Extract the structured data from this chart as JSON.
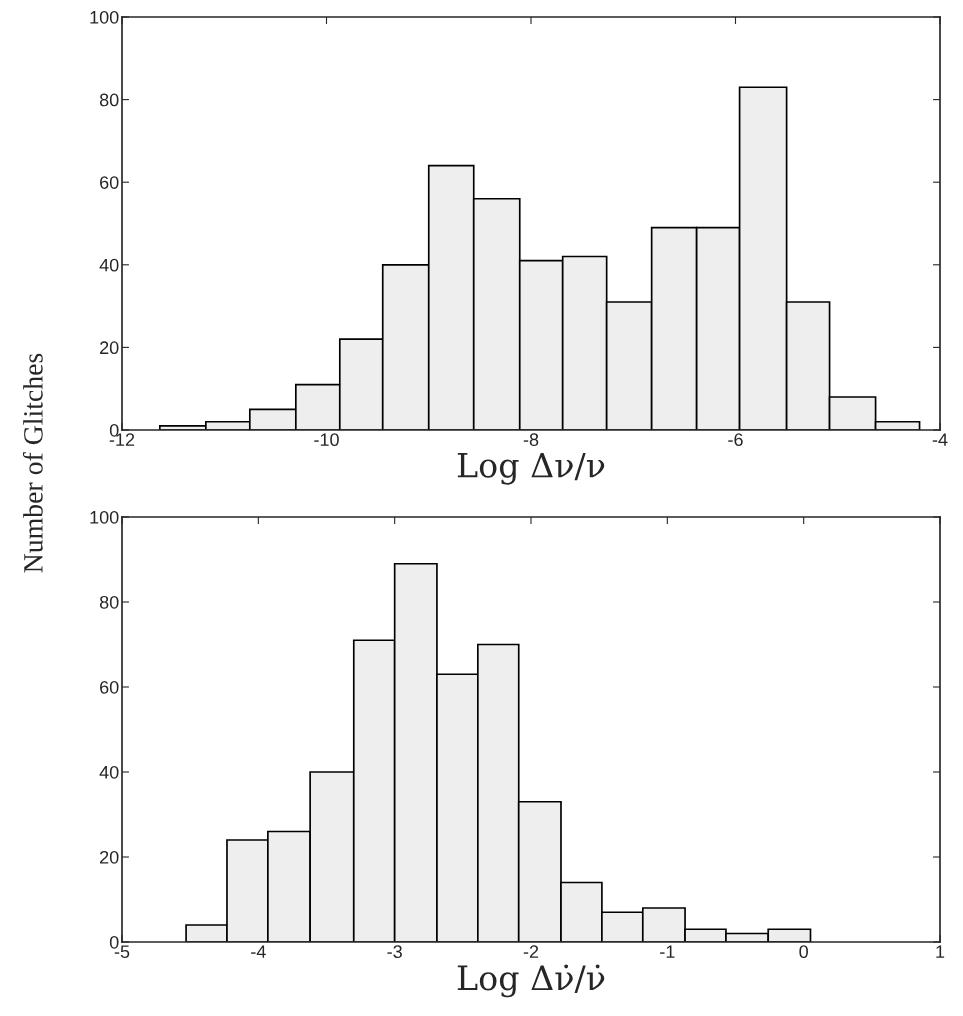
{
  "chart_data": [
    {
      "type": "histogram",
      "xlabel": "Log Δν/ν",
      "ylabel": "Number of Glitches",
      "color": "#eeeeee",
      "bins": [
        -11.63,
        -11.18,
        -10.75,
        -10.3,
        -9.87,
        -9.45,
        -9.0,
        -8.56,
        -8.11,
        -7.69,
        -7.26,
        -6.82,
        -6.38,
        -5.96,
        -5.5,
        -5.08,
        -4.63,
        -4.2
      ],
      "values": [
        1,
        2,
        5,
        11,
        22,
        40,
        64,
        56,
        41,
        42,
        31,
        49,
        49,
        83,
        31,
        8,
        2
      ],
      "xlim": [
        -12,
        -4
      ],
      "xticks": [
        -12,
        -10,
        -8,
        -6,
        -4
      ],
      "ylim": [
        0,
        100
      ],
      "yticks": [
        0,
        20,
        40,
        60,
        80,
        100
      ],
      "grid": false,
      "legend": false
    },
    {
      "type": "histogram",
      "xlabel": "Log Δν̇/ν̇",
      "color": "#eeeeee",
      "bins": [
        -4.53,
        -4.23,
        -3.93,
        -3.62,
        -3.3,
        -3.0,
        -2.69,
        -2.39,
        -2.09,
        -1.78,
        -1.48,
        -1.18,
        -0.87,
        -0.57,
        -0.26,
        0.05
      ],
      "values": [
        4,
        24,
        26,
        40,
        71,
        89,
        63,
        70,
        33,
        14,
        7,
        8,
        3,
        2,
        3
      ],
      "xlim": [
        -5,
        1
      ],
      "xticks": [
        -5,
        -4,
        -3,
        -2,
        -1,
        0,
        1
      ],
      "ylim": [
        0,
        100
      ],
      "yticks": [
        0,
        20,
        40,
        60,
        80,
        100
      ],
      "grid": false,
      "legend": false
    }
  ]
}
